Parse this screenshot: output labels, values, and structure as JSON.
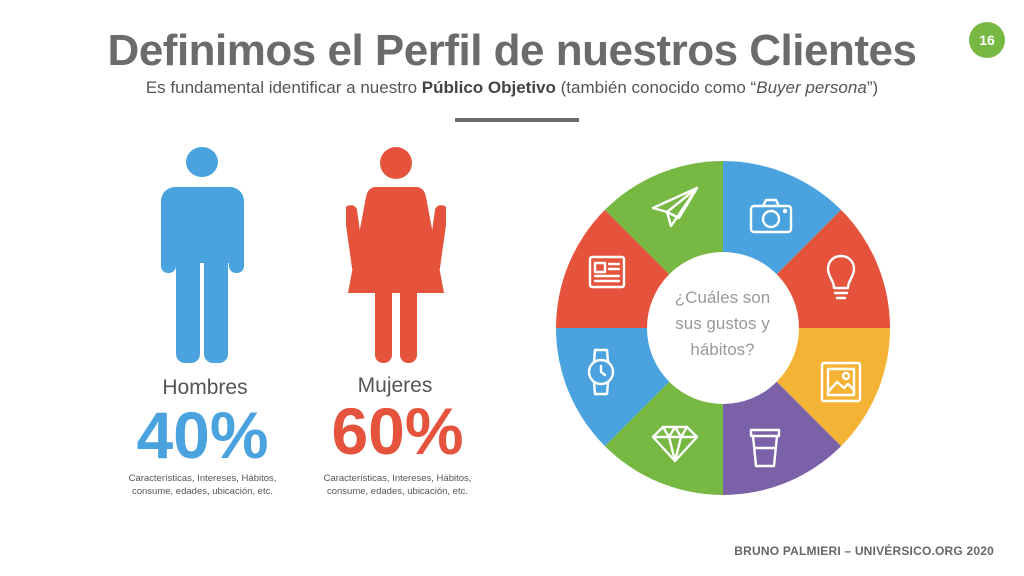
{
  "title": "Definimos el Perfil de nuestros Clientes",
  "subtitle": {
    "pre": "Es fundamental identificar a nuestro ",
    "bold": "Público Objetivo",
    "mid": " (también conocido como “",
    "italic": "Buyer persona",
    "post": "”)"
  },
  "page_number": "16",
  "men": {
    "label": "Hombres",
    "percent": "40%",
    "desc_line1": "Características, Intereses, Hábitos,",
    "desc_line2": "consume, edades, ubicación, etc.",
    "color": "#4aa3df"
  },
  "women": {
    "label": "Mujeres",
    "percent": "60%",
    "desc_line1": "Características, Intereses, Hábitos,",
    "desc_line2": "consume, edades, ubicación, etc.",
    "color": "#e5533d"
  },
  "wheel": {
    "center_line1": "¿Cuáles son",
    "center_line2": "sus gustos y",
    "center_line3": "hábitos?",
    "segments": [
      {
        "icon": "camera-icon",
        "color": "#4aa3df"
      },
      {
        "icon": "lightbulb-icon",
        "color": "#e5533d"
      },
      {
        "icon": "picture-icon",
        "color": "#f5b335"
      },
      {
        "icon": "coffee-cup-icon",
        "color": "#7b62a8"
      },
      {
        "icon": "diamond-icon",
        "color": "#77b843"
      },
      {
        "icon": "watch-icon",
        "color": "#4aa3df"
      },
      {
        "icon": "newspaper-icon",
        "color": "#e5533d"
      },
      {
        "icon": "paper-plane-icon",
        "color": "#77b843"
      }
    ]
  },
  "footer": "BRUNO PALMIERI – UNIVÉRSICO.ORG 2020"
}
